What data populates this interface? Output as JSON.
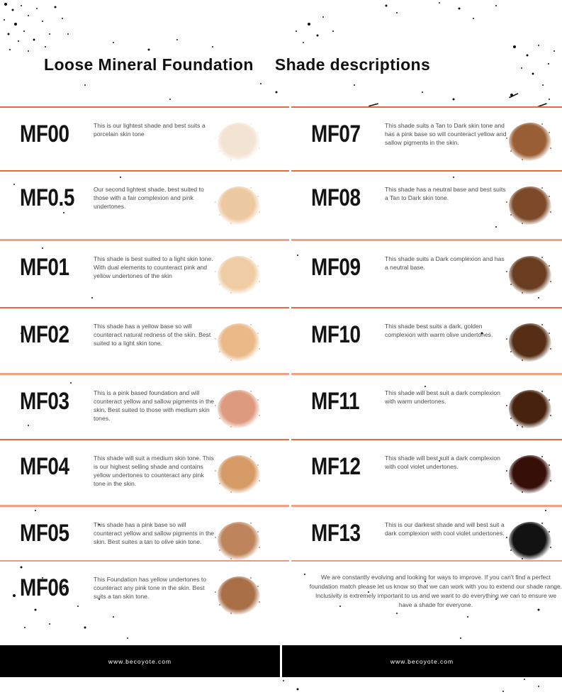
{
  "header": {
    "title_left": "Loose Mineral Foundation",
    "title_right": "Shade descriptions"
  },
  "shades": [
    {
      "name": "MF00",
      "description": "This is our lightest shade and best suits a porcelain skin tone",
      "color": "#F3E3D2"
    },
    {
      "name": "MF0.5",
      "description": "Our second lightest shade, best suited to those with a fair complexion and pink undertones.",
      "color": "#EDC9A2"
    },
    {
      "name": "MF01",
      "description": "This shade is best suited to a light skin tone. With dual elements to counteract pink and yellow undertones of the skin",
      "color": "#EFCCA3"
    },
    {
      "name": "MF02",
      "description": "This shade has a yellow base so will counteract natural redness of the skin. Best suited to a light skin tone.",
      "color": "#EAB988"
    },
    {
      "name": "MF03",
      "description": "This is a pink based foundation and will counteract yellow and sallow pigments in the skin. Best suited to those with medium skin tones.",
      "color": "#DD9A7F"
    },
    {
      "name": "MF04",
      "description": "This shade will suit a medium skin tone. This is our highest selling shade and contains yellow undertones to counteract any pink tone in the skin.",
      "color": "#D69A66"
    },
    {
      "name": "MF05",
      "description": "This shade has a pink base so will counteract yellow and sallow pigments in the skin. Best suites a tan to olive skin tone.",
      "color": "#BE855C"
    },
    {
      "name": "MF06",
      "description": "This Foundation has yellow undertones to counteract any pink tone in the skin. Best suits a tan skin tone.",
      "color": "#A96F47"
    },
    {
      "name": "MF07",
      "description": "This shade suits a Tan to Dark skin tone and has a pink base so will counteract yellow and sallow pigments in the skin.",
      "color": "#9A5F36"
    },
    {
      "name": "MF08",
      "description": "This shade has a neutral base and best suits a Tan to Dark skin tone.",
      "color": "#7C4A28"
    },
    {
      "name": "MF09",
      "description": "This shade suits a Dark complexion and has a neutral base.",
      "color": "#6A3D20"
    },
    {
      "name": "MF10",
      "description": "This shade best suits a dark, golden complexion with warm olive undertones.",
      "color": "#552E15"
    },
    {
      "name": "MF11",
      "description": "This shade will best suit a dark complexion with warm undertones.",
      "color": "#47230F"
    },
    {
      "name": "MF12",
      "description": "This shade will best suit a dark complexion with cool violet undertones.",
      "color": "#360F08"
    },
    {
      "name": "MF13",
      "description": "This is our darkest shade and will best suit a dark complexion with cool violet undertones.",
      "color": "#121212"
    }
  ],
  "note": "We are constantly evolving and looking for ways to improve. If you can't find a perfect foundation match please let us know so that we can work with you to extend our shade range. Inclusivity is extremely important to us and we want to do everything we can to ensure we have a shade for everyone.",
  "footer": {
    "website": "www.becoyote.com"
  },
  "colors": {
    "divider_orange": "#F0663B",
    "divider_salmon": "#F59F85",
    "footer_background": "#000000"
  }
}
